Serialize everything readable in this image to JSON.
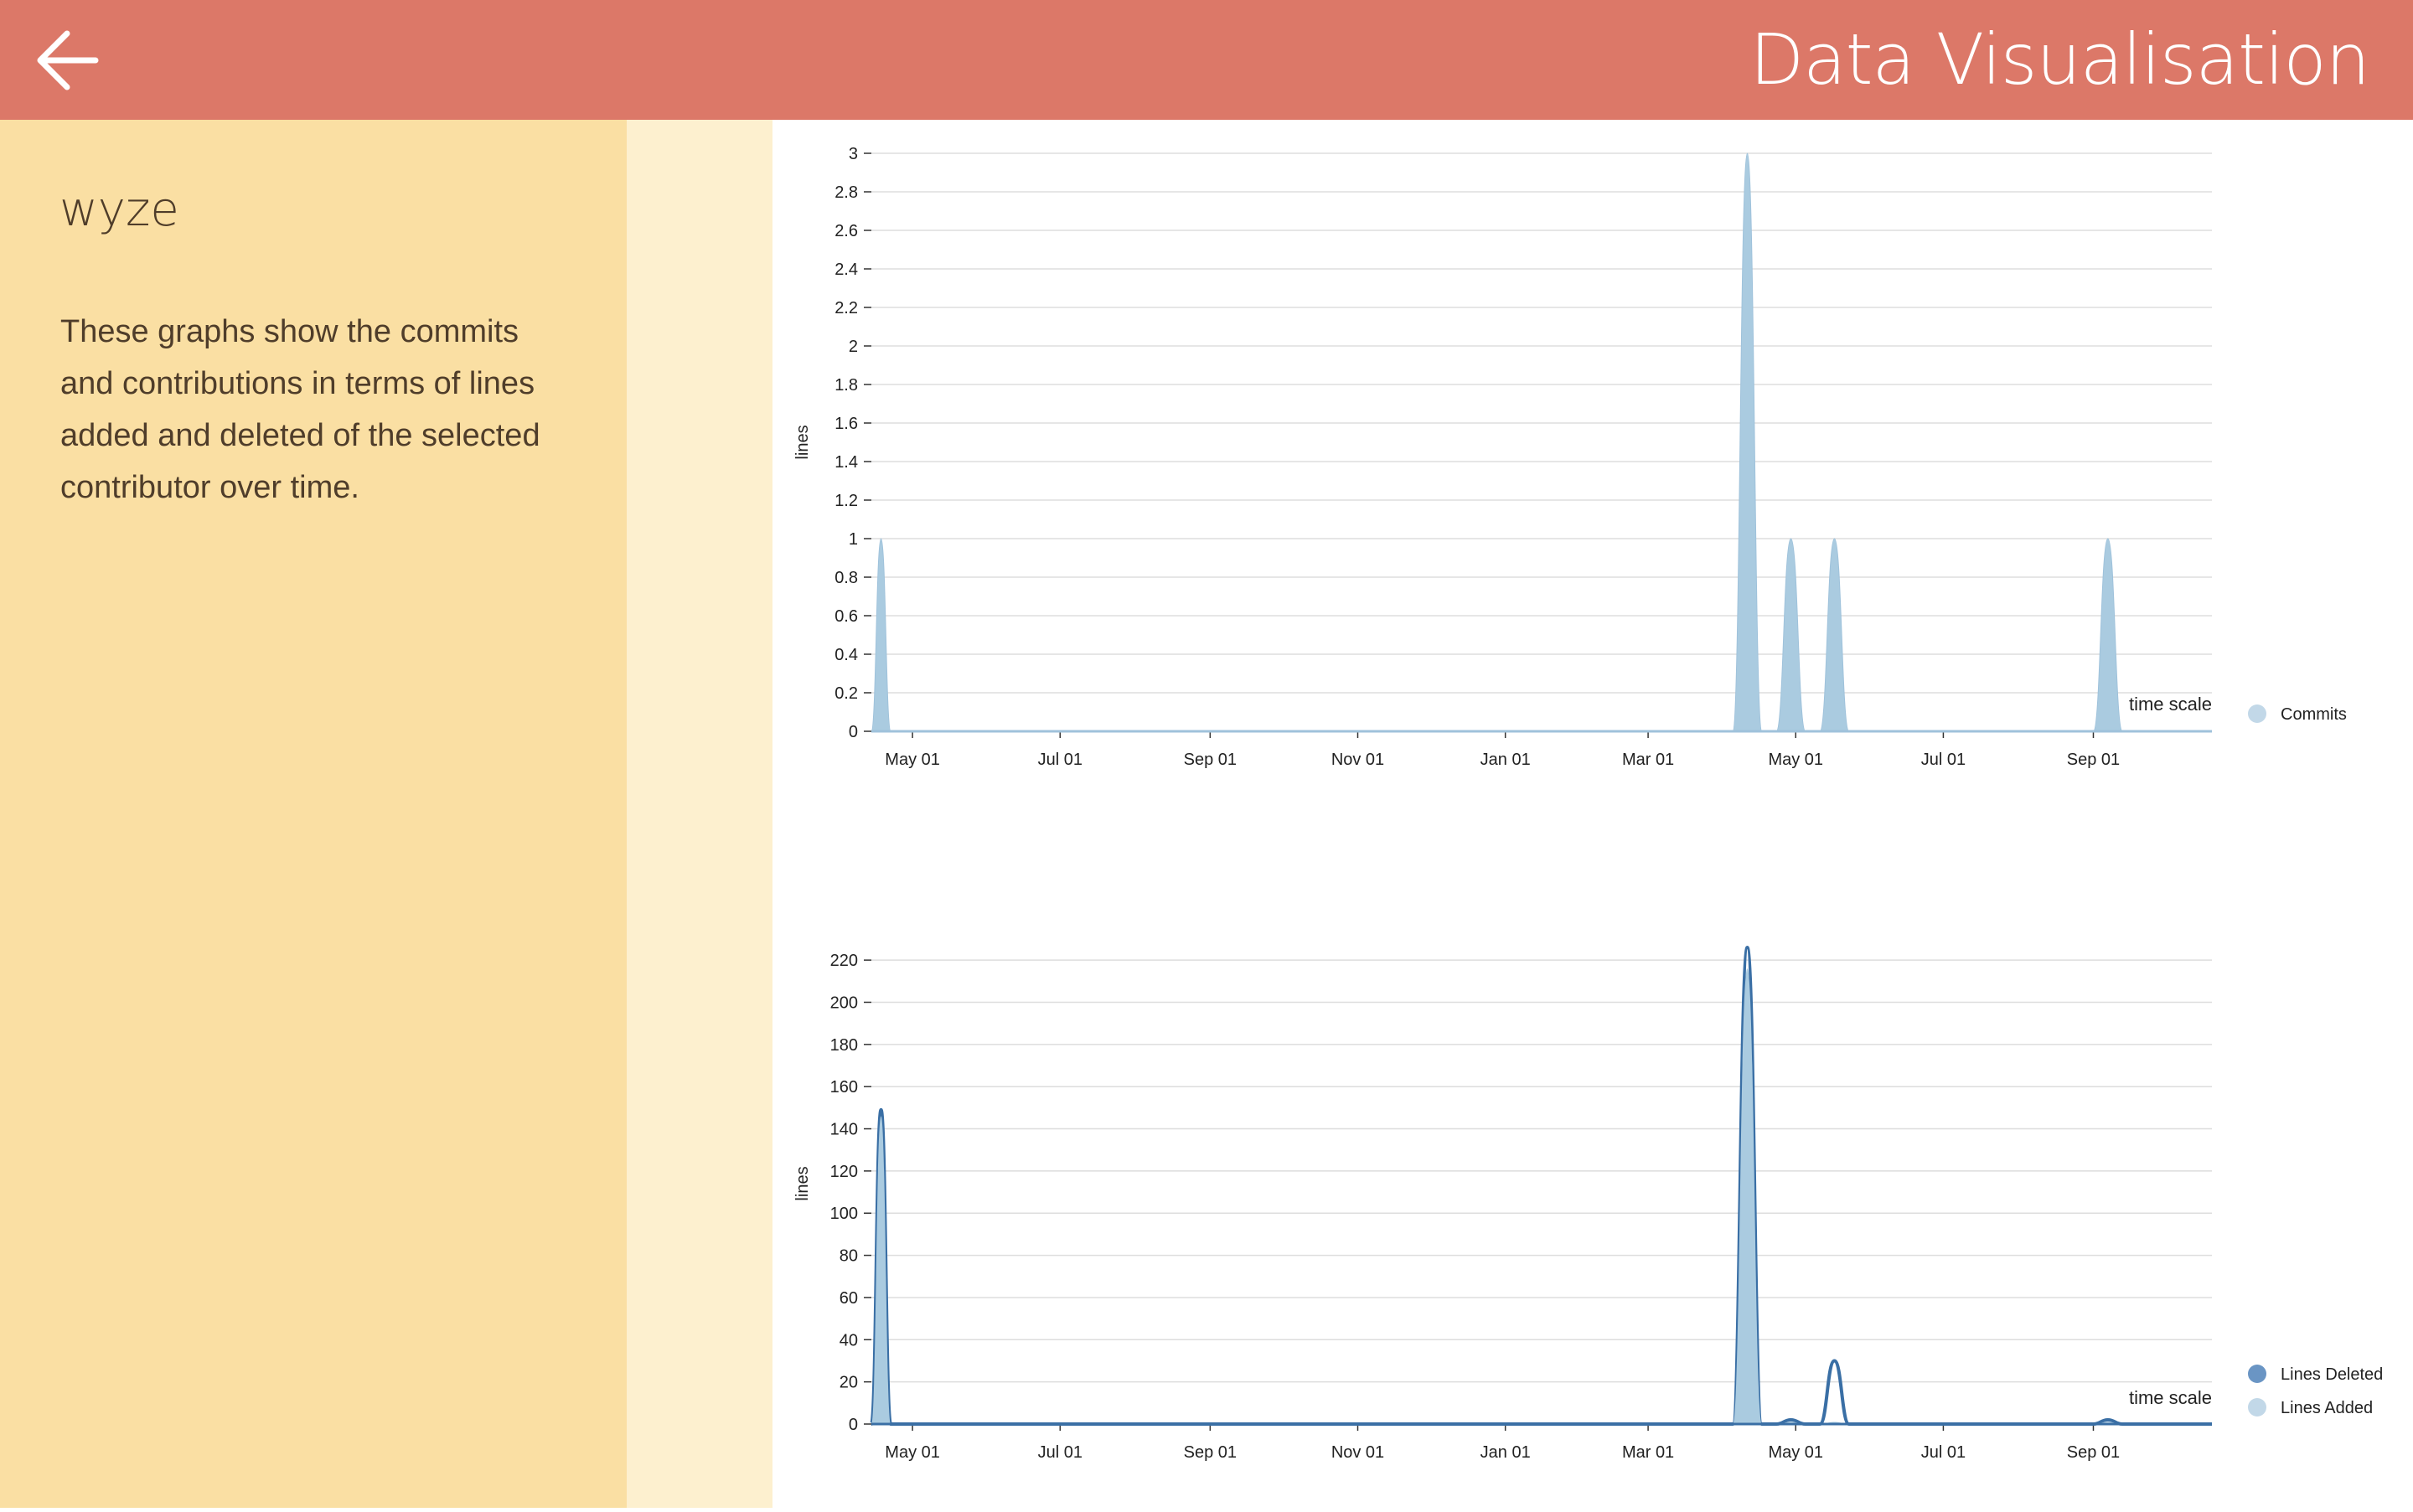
{
  "colors": {
    "header_bg": "#dc7868",
    "sidebar_bg": "#fadfa3",
    "strip_bg": "#fdf0cf",
    "commits_fill": "#aacbe0",
    "lines_added_fill": "#aacbe0",
    "lines_deleted_stroke": "#3a6fa5",
    "text_dark": "#4f3d2a",
    "header_text": "#ffffff"
  },
  "header": {
    "title": "Data Visualisation",
    "back_icon": "arrow-left-icon"
  },
  "sidebar": {
    "repo_name": "wyze",
    "description": "These graphs show the commits and contributions in terms of lines added and deleted of the selected contributor over time."
  },
  "chart_data": [
    {
      "type": "area",
      "title": "",
      "ylabel": "lines",
      "xlabel": "time scale",
      "ylim": [
        0,
        3
      ],
      "yticks": [
        0,
        0.2,
        0.4,
        0.6,
        0.8,
        1,
        1.2,
        1.4,
        1.6,
        1.8,
        2,
        2.2,
        2.4,
        2.6,
        2.8,
        3
      ],
      "xlim": [
        "2017-04-14",
        "2018-10-20"
      ],
      "xticks": [
        "May 01",
        "Jul 01",
        "Sep 01",
        "Nov 01",
        "Jan 01",
        "Mar 01",
        "May 01",
        "Jul 01",
        "Sep 01"
      ],
      "xtick_dates": [
        "2017-05-01",
        "2017-07-01",
        "2017-09-01",
        "2017-11-01",
        "2018-01-01",
        "2018-03-01",
        "2018-05-01",
        "2018-07-01",
        "2018-09-01"
      ],
      "grid": true,
      "legend_position": "right",
      "series": [
        {
          "name": "Commits",
          "x": [
            "2017-04-14",
            "2017-04-18",
            "2017-04-22",
            "2017-04-26",
            "2018-04-05",
            "2018-04-11",
            "2018-04-17",
            "2018-04-23",
            "2018-04-29",
            "2018-05-05",
            "2018-05-11",
            "2018-05-17",
            "2018-05-23",
            "2018-05-29",
            "2018-09-01",
            "2018-09-07",
            "2018-09-13",
            "2018-10-20"
          ],
          "values": [
            0,
            1,
            0,
            0,
            0,
            3,
            0,
            0,
            1,
            0,
            0,
            1,
            0,
            0,
            0,
            1,
            0,
            0
          ]
        }
      ]
    },
    {
      "type": "area",
      "title": "",
      "ylabel": "lines",
      "xlabel": "time scale",
      "ylim": [
        0,
        228
      ],
      "yticks": [
        0,
        20,
        40,
        60,
        80,
        100,
        120,
        140,
        160,
        180,
        200,
        220
      ],
      "xlim": [
        "2017-04-14",
        "2018-10-20"
      ],
      "xticks": [
        "May 01",
        "Jul 01",
        "Sep 01",
        "Nov 01",
        "Jan 01",
        "Mar 01",
        "May 01",
        "Jul 01",
        "Sep 01"
      ],
      "xtick_dates": [
        "2017-05-01",
        "2017-07-01",
        "2017-09-01",
        "2017-11-01",
        "2018-01-01",
        "2018-03-01",
        "2018-05-01",
        "2018-07-01",
        "2018-09-01"
      ],
      "grid": true,
      "legend_position": "bottom-right",
      "series": [
        {
          "name": "Lines Deleted",
          "x": [
            "2017-04-14",
            "2017-04-18",
            "2017-04-22",
            "2017-04-26",
            "2018-04-05",
            "2018-04-11",
            "2018-04-17",
            "2018-04-23",
            "2018-04-29",
            "2018-05-05",
            "2018-05-11",
            "2018-05-17",
            "2018-05-23",
            "2018-05-29",
            "2018-09-01",
            "2018-09-07",
            "2018-09-13",
            "2018-10-20"
          ],
          "values": [
            0,
            149,
            0,
            0,
            0,
            226,
            0,
            0,
            2,
            0,
            0,
            30,
            0,
            0,
            0,
            2,
            0,
            0
          ]
        },
        {
          "name": "Lines Added",
          "x": [
            "2017-04-14",
            "2017-04-18",
            "2017-04-22",
            "2017-04-26",
            "2018-04-05",
            "2018-04-11",
            "2018-04-17",
            "2018-04-23",
            "2018-04-29",
            "2018-05-05",
            "2018-05-11",
            "2018-05-17",
            "2018-05-23",
            "2018-05-29",
            "2018-09-01",
            "2018-09-07",
            "2018-09-13",
            "2018-10-20"
          ],
          "values": [
            0,
            146,
            0,
            0,
            0,
            216,
            0,
            0,
            1,
            0,
            0,
            1,
            0,
            0,
            0,
            1,
            0,
            0
          ]
        }
      ]
    }
  ]
}
